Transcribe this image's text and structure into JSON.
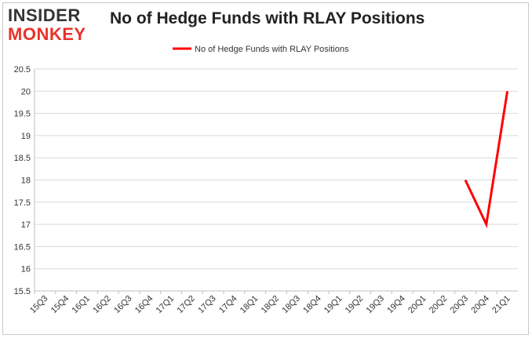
{
  "logo": {
    "line1": "INSIDER",
    "line2": "MONKEY",
    "dark": "#333333",
    "accent": "#e8332a"
  },
  "title": "No of Hedge Funds with RLAY Positions",
  "chart_data": {
    "type": "line",
    "title": "No of Hedge Funds with RLAY Positions",
    "xlabel": "",
    "ylabel": "",
    "categories": [
      "15Q3",
      "15Q4",
      "16Q1",
      "16Q2",
      "16Q3",
      "16Q4",
      "17Q1",
      "17Q2",
      "17Q3",
      "17Q4",
      "18Q1",
      "18Q2",
      "18Q3",
      "18Q4",
      "19Q1",
      "19Q2",
      "19Q3",
      "19Q4",
      "20Q1",
      "20Q2",
      "20Q3",
      "20Q4",
      "21Q1"
    ],
    "series": [
      {
        "name": "No of Hedge Funds with RLAY Positions",
        "color": "#ff0000",
        "values": [
          null,
          null,
          null,
          null,
          null,
          null,
          null,
          null,
          null,
          null,
          null,
          null,
          null,
          null,
          null,
          null,
          null,
          null,
          null,
          null,
          18,
          17,
          20
        ]
      }
    ],
    "yticks": [
      "15.5",
      "16",
      "16.5",
      "17",
      "17.5",
      "18",
      "18.5",
      "19",
      "19.5",
      "20",
      "20.5"
    ],
    "ylim": [
      15.5,
      20.5
    ],
    "grid": true,
    "legend_position": "top-center"
  }
}
